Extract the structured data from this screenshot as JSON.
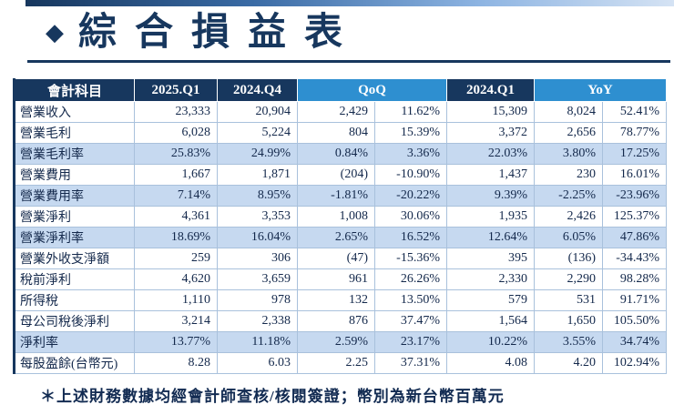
{
  "slide": {
    "bullet": "◆",
    "title": "綜合損益表",
    "footer_note": "＊上述財務數據均經會計師查核/核閱簽證；幣別為新台幣百萬元"
  },
  "colors": {
    "navy": "#17375E",
    "accent_blue": "#2E8FD0",
    "row_shade": "#C6D9F0",
    "grid_line": "#A9C1DC"
  },
  "table": {
    "headers": {
      "account": "會計科目",
      "q1_2025": "2025.Q1",
      "q4_2024": "2024.Q4",
      "qoq": "QoQ",
      "q1_2024": "2024.Q1",
      "yoy": "YoY"
    },
    "rows": [
      {
        "name": "營業收入",
        "q1_2025": "23,333",
        "q4_2024": "20,904",
        "qoq_amt": "2,429",
        "qoq_pct": "11.62%",
        "q1_2024": "15,309",
        "yoy_amt": "8,024",
        "yoy_pct": "52.41%",
        "shaded": false
      },
      {
        "name": "營業毛利",
        "q1_2025": "6,028",
        "q4_2024": "5,224",
        "qoq_amt": "804",
        "qoq_pct": "15.39%",
        "q1_2024": "3,372",
        "yoy_amt": "2,656",
        "yoy_pct": "78.77%",
        "shaded": false
      },
      {
        "name": "營業毛利率",
        "q1_2025": "25.83%",
        "q4_2024": "24.99%",
        "qoq_amt": "0.84%",
        "qoq_pct": "3.36%",
        "q1_2024": "22.03%",
        "yoy_amt": "3.80%",
        "yoy_pct": "17.25%",
        "shaded": true
      },
      {
        "name": "營業費用",
        "q1_2025": "1,667",
        "q4_2024": "1,871",
        "qoq_amt": "(204)",
        "qoq_pct": "-10.90%",
        "q1_2024": "1,437",
        "yoy_amt": "230",
        "yoy_pct": "16.01%",
        "shaded": false
      },
      {
        "name": "營業費用率",
        "q1_2025": "7.14%",
        "q4_2024": "8.95%",
        "qoq_amt": "-1.81%",
        "qoq_pct": "-20.22%",
        "q1_2024": "9.39%",
        "yoy_amt": "-2.25%",
        "yoy_pct": "-23.96%",
        "shaded": true
      },
      {
        "name": "營業淨利",
        "q1_2025": "4,361",
        "q4_2024": "3,353",
        "qoq_amt": "1,008",
        "qoq_pct": "30.06%",
        "q1_2024": "1,935",
        "yoy_amt": "2,426",
        "yoy_pct": "125.37%",
        "shaded": false
      },
      {
        "name": "營業淨利率",
        "q1_2025": "18.69%",
        "q4_2024": "16.04%",
        "qoq_amt": "2.65%",
        "qoq_pct": "16.52%",
        "q1_2024": "12.64%",
        "yoy_amt": "6.05%",
        "yoy_pct": "47.86%",
        "shaded": true
      },
      {
        "name": "營業外收支淨額",
        "q1_2025": "259",
        "q4_2024": "306",
        "qoq_amt": "(47)",
        "qoq_pct": "-15.36%",
        "q1_2024": "395",
        "yoy_amt": "(136)",
        "yoy_pct": "-34.43%",
        "shaded": false
      },
      {
        "name": "稅前淨利",
        "q1_2025": "4,620",
        "q4_2024": "3,659",
        "qoq_amt": "961",
        "qoq_pct": "26.26%",
        "q1_2024": "2,330",
        "yoy_amt": "2,290",
        "yoy_pct": "98.28%",
        "shaded": false
      },
      {
        "name": "所得稅",
        "q1_2025": "1,110",
        "q4_2024": "978",
        "qoq_amt": "132",
        "qoq_pct": "13.50%",
        "q1_2024": "579",
        "yoy_amt": "531",
        "yoy_pct": "91.71%",
        "shaded": false
      },
      {
        "name": "母公司稅後淨利",
        "q1_2025": "3,214",
        "q4_2024": "2,338",
        "qoq_amt": "876",
        "qoq_pct": "37.47%",
        "q1_2024": "1,564",
        "yoy_amt": "1,650",
        "yoy_pct": "105.50%",
        "shaded": false
      },
      {
        "name": "淨利率",
        "q1_2025": "13.77%",
        "q4_2024": "11.18%",
        "qoq_amt": "2.59%",
        "qoq_pct": "23.17%",
        "q1_2024": "10.22%",
        "yoy_amt": "3.55%",
        "yoy_pct": "34.74%",
        "shaded": true
      },
      {
        "name": "每股盈餘(台幣元)",
        "q1_2025": "8.28",
        "q4_2024": "6.03",
        "qoq_amt": "2.25",
        "qoq_pct": "37.31%",
        "q1_2024": "4.08",
        "yoy_amt": "4.20",
        "yoy_pct": "102.94%",
        "shaded": false
      }
    ]
  }
}
